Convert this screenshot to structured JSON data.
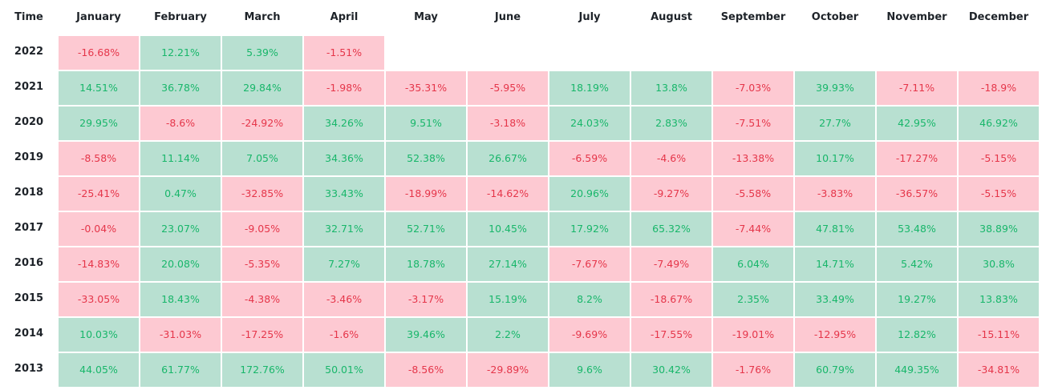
{
  "table": {
    "header": [
      "Time",
      "January",
      "February",
      "March",
      "April",
      "May",
      "June",
      "July",
      "August",
      "September",
      "October",
      "November",
      "December"
    ],
    "rows": [
      {
        "year": "2022",
        "cells": [
          "-16.68%",
          "12.21%",
          "5.39%",
          "-1.51%"
        ]
      },
      {
        "year": "2021",
        "cells": [
          "14.51%",
          "36.78%",
          "29.84%",
          "-1.98%",
          "-35.31%",
          "-5.95%",
          "18.19%",
          "13.8%",
          "-7.03%",
          "39.93%",
          "-7.11%",
          "-18.9%"
        ]
      },
      {
        "year": "2020",
        "cells": [
          "29.95%",
          "-8.6%",
          "-24.92%",
          "34.26%",
          "9.51%",
          "-3.18%",
          "24.03%",
          "2.83%",
          "-7.51%",
          "27.7%",
          "42.95%",
          "46.92%"
        ]
      },
      {
        "year": "2019",
        "cells": [
          "-8.58%",
          "11.14%",
          "7.05%",
          "34.36%",
          "52.38%",
          "26.67%",
          "-6.59%",
          "-4.6%",
          "-13.38%",
          "10.17%",
          "-17.27%",
          "-5.15%"
        ]
      },
      {
        "year": "2018",
        "cells": [
          "-25.41%",
          "0.47%",
          "-32.85%",
          "33.43%",
          "-18.99%",
          "-14.62%",
          "20.96%",
          "-9.27%",
          "-5.58%",
          "-3.83%",
          "-36.57%",
          "-5.15%"
        ]
      },
      {
        "year": "2017",
        "cells": [
          "-0.04%",
          "23.07%",
          "-9.05%",
          "32.71%",
          "52.71%",
          "10.45%",
          "17.92%",
          "65.32%",
          "-7.44%",
          "47.81%",
          "53.48%",
          "38.89%"
        ]
      },
      {
        "year": "2016",
        "cells": [
          "-14.83%",
          "20.08%",
          "-5.35%",
          "7.27%",
          "18.78%",
          "27.14%",
          "-7.67%",
          "-7.49%",
          "6.04%",
          "14.71%",
          "5.42%",
          "30.8%"
        ]
      },
      {
        "year": "2015",
        "cells": [
          "-33.05%",
          "18.43%",
          "-4.38%",
          "-3.46%",
          "-3.17%",
          "15.19%",
          "8.2%",
          "-18.67%",
          "2.35%",
          "33.49%",
          "19.27%",
          "13.83%"
        ]
      },
      {
        "year": "2014",
        "cells": [
          "10.03%",
          "-31.03%",
          "-17.25%",
          "-1.6%",
          "39.46%",
          "2.2%",
          "-9.69%",
          "-17.55%",
          "-19.01%",
          "-12.95%",
          "12.82%",
          "-15.11%"
        ]
      },
      {
        "year": "2013",
        "cells": [
          "44.05%",
          "61.77%",
          "172.76%",
          "50.01%",
          "-8.56%",
          "-29.89%",
          "9.6%",
          "30.42%",
          "-1.76%",
          "60.79%",
          "449.35%",
          "-34.81%"
        ]
      }
    ]
  }
}
